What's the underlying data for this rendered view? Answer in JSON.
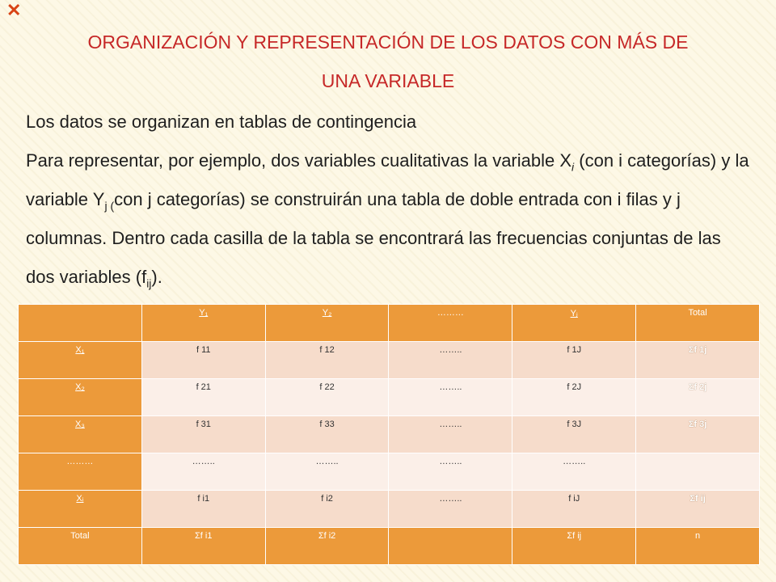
{
  "title": {
    "line1": "ORGANIZACIÓN Y REPRESENTACIÓN DE LOS DATOS CON MÁS DE",
    "line2": "UNA VARIABLE"
  },
  "intro": "Los datos se organizan en tablas de contingencia",
  "paragraph": {
    "p1": "Para representar, por ejemplo, dos variables cualitativas la  variable X",
    "xi_sub": "i",
    "p2": " (con i categorías) y la  variable Y",
    "yj_sub": "j (",
    "p3": "con j categorías) se construirán una tabla de doble entrada con i filas y j columnas.  Dentro cada casilla de la  tabla se encontrará las frecuencias conjuntas de las dos variables (f",
    "fij_sub": "ij",
    "p4": ")."
  },
  "table": {
    "header": [
      "",
      "Y₁",
      "Y₂",
      "………",
      "Yⱼ",
      "Total"
    ],
    "rows": [
      {
        "label": "X₁",
        "cells": [
          "f 11",
          "f 12",
          "……..",
          "f 1J"
        ],
        "sum": "Σf 1j"
      },
      {
        "label": "X₂",
        "cells": [
          "f 21",
          "f 22",
          "……..",
          "f 2J"
        ],
        "sum": "Σf 2j"
      },
      {
        "label": "X₃",
        "cells": [
          "f 31",
          "f 33",
          "……..",
          "f 3J"
        ],
        "sum": "Σf 3j"
      },
      {
        "label": "………",
        "cells": [
          "……..",
          "……..",
          "……..",
          "…….."
        ],
        "sum": ""
      },
      {
        "label": "Xᵢ",
        "cells": [
          "f i1",
          "f i2",
          "……..",
          "f iJ"
        ],
        "sum": "Σf ij"
      }
    ],
    "total": [
      "Total",
      "Σf i1",
      "Σf i2",
      "",
      "Σf ij",
      "n"
    ]
  }
}
